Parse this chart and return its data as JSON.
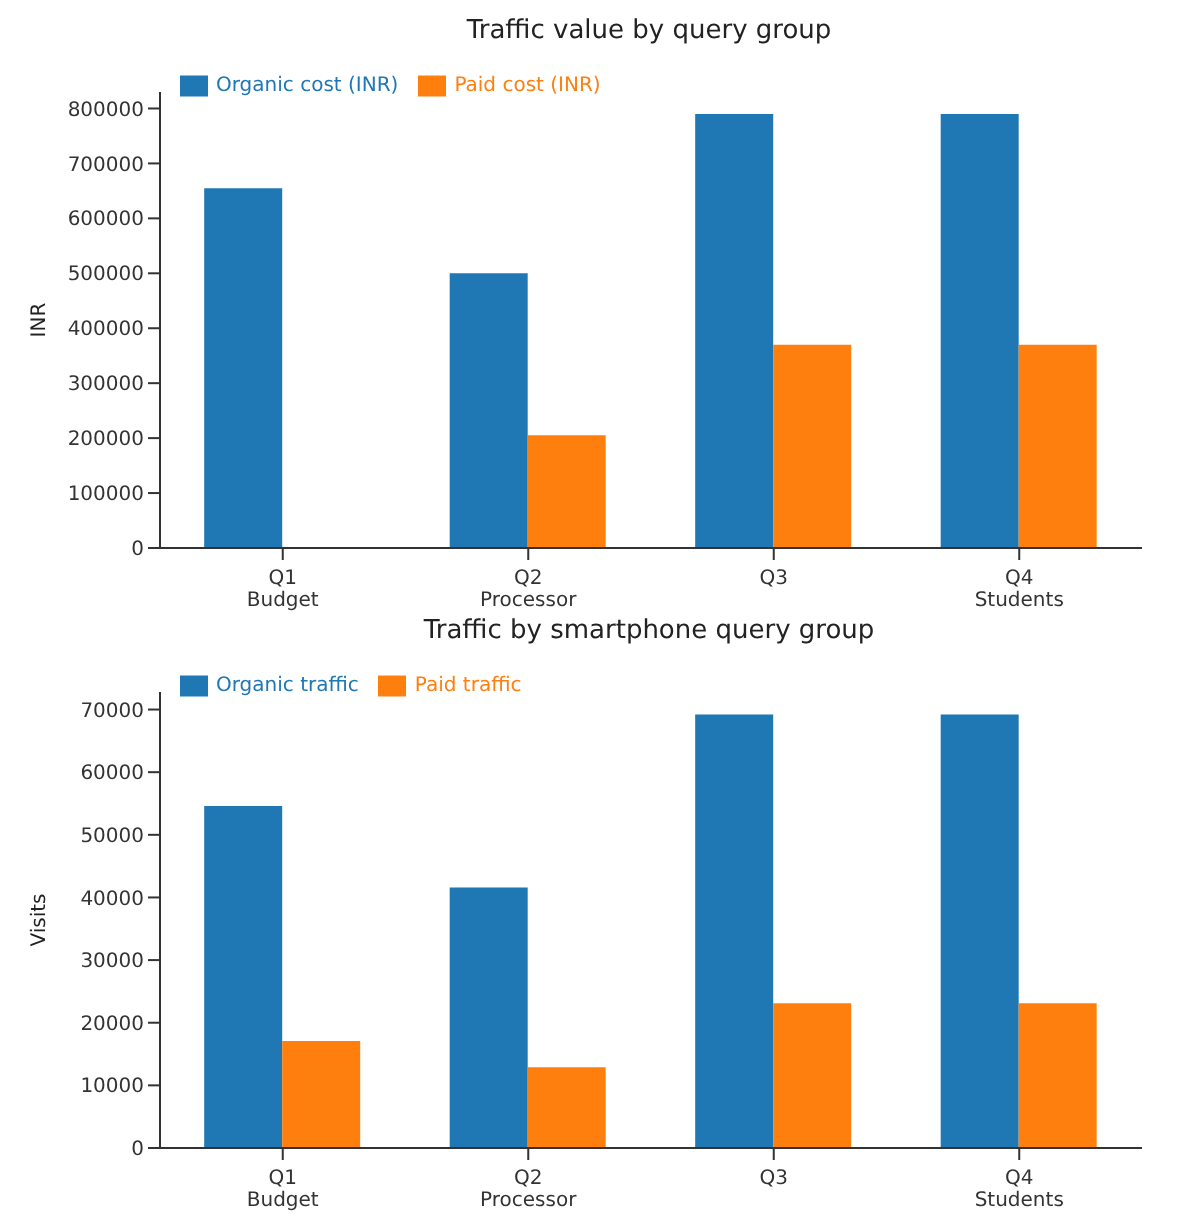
{
  "chart_data": [
    {
      "type": "bar",
      "title": "Traffic value by query group",
      "ylabel": "INR",
      "categories": [
        "Q1\nBudget",
        "Q2\nProcessor",
        "Q3",
        "Q4\nStudents"
      ],
      "series": [
        {
          "name": "Organic cost (INR)",
          "color": "#1f77b4",
          "values": [
            655000,
            500000,
            790000,
            790000
          ]
        },
        {
          "name": "Paid cost (INR)",
          "color": "#ff7f0e",
          "values": [
            0,
            205000,
            370000,
            370000
          ]
        }
      ],
      "ylim": [
        0,
        830000
      ],
      "yticks": [
        0,
        100000,
        200000,
        300000,
        400000,
        500000,
        600000,
        700000,
        800000
      ],
      "grid": false,
      "legend": "top left"
    },
    {
      "type": "bar",
      "title": "Traffic by smartphone query group",
      "ylabel": "Visits",
      "categories": [
        "Q1\nBudget",
        "Q2\nProcessor",
        "Q3",
        "Q4\nStudents"
      ],
      "series": [
        {
          "name": "Organic traffic",
          "color": "#1f77b4",
          "values": [
            54600,
            41600,
            69200,
            69200
          ]
        },
        {
          "name": "Paid traffic",
          "color": "#ff7f0e",
          "values": [
            17100,
            12900,
            23100,
            23100
          ]
        }
      ],
      "ylim": [
        0,
        72800
      ],
      "yticks": [
        0,
        10000,
        20000,
        30000,
        40000,
        50000,
        60000,
        70000
      ],
      "grid": false,
      "legend": "top left"
    }
  ]
}
